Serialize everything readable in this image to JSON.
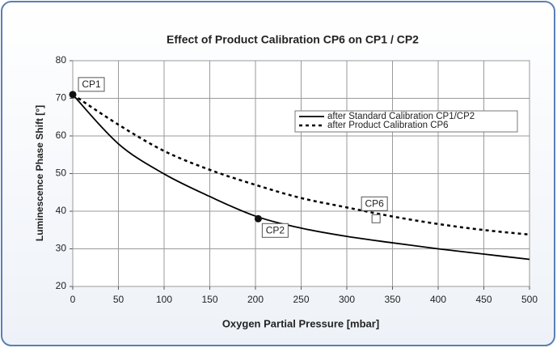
{
  "chart_data": {
    "type": "line",
    "title": "Effect of Product Calibration CP6 on CP1 / CP2",
    "xlabel": "Oxygen Partial Pressure [mbar]",
    "ylabel": "Luminescence Phase Shift [°]",
    "x": [
      0,
      50,
      100,
      150,
      200,
      250,
      300,
      350,
      400,
      450,
      500
    ],
    "series": [
      {
        "name": "after Standard Calibration CP1/CP2",
        "color": "#000000",
        "style": "solid",
        "values": [
          71,
          57.9,
          49.9,
          43.9,
          38.7,
          35.5,
          33.3,
          31.6,
          30,
          28.6,
          27.2
        ]
      },
      {
        "name": "after Product Calibration CP6",
        "color": "#000000",
        "style": "dotted",
        "values": [
          71,
          63,
          56,
          51,
          47,
          43.5,
          41,
          38.6,
          36.6,
          35,
          33.8
        ]
      }
    ],
    "points": [
      {
        "name": "CP1",
        "x": 0,
        "y": 71,
        "marker": "filled"
      },
      {
        "name": "CP2",
        "x": 203,
        "y": 38,
        "marker": "filled"
      },
      {
        "name": "CP6",
        "x": 332,
        "y": 38,
        "marker": "open-square"
      }
    ],
    "xlim": [
      0,
      500
    ],
    "xticks": [
      0,
      50,
      100,
      150,
      200,
      250,
      300,
      350,
      400,
      450,
      500
    ],
    "ylim": [
      20,
      80
    ],
    "yticks": [
      20,
      30,
      40,
      50,
      60,
      70,
      80
    ],
    "grid": true,
    "legend_position": "upper right"
  }
}
